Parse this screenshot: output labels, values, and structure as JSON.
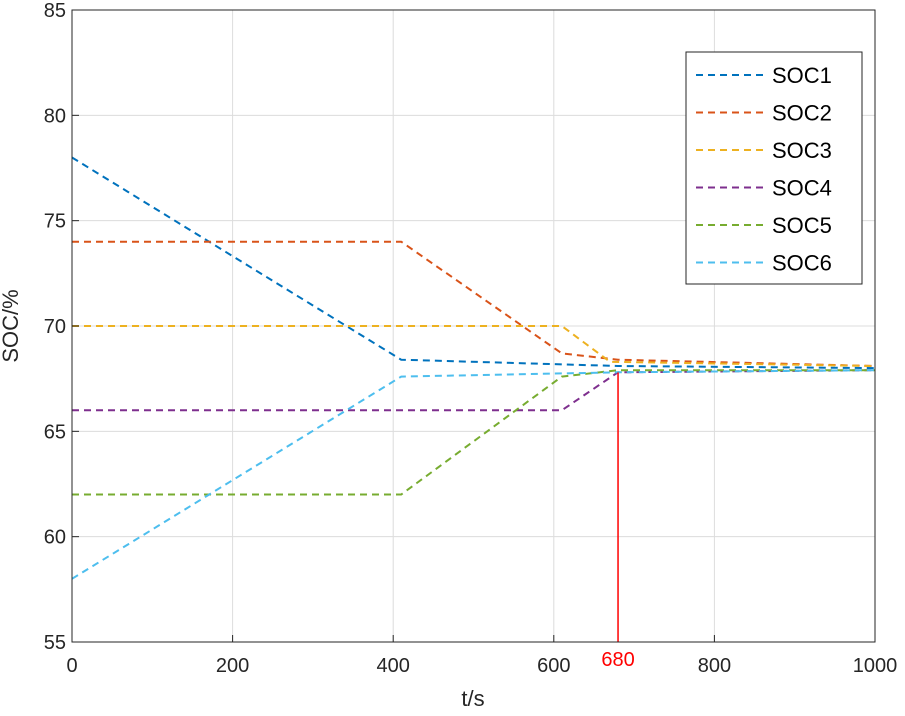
{
  "chart_data": {
    "type": "line",
    "title": "",
    "xlabel": "t/s",
    "ylabel": "SOC/%",
    "xlim": [
      0,
      1000
    ],
    "ylim": [
      55,
      85
    ],
    "xticks": [
      0,
      200,
      400,
      600,
      800,
      1000
    ],
    "yticks": [
      55,
      60,
      65,
      70,
      75,
      80,
      85
    ],
    "grid": true,
    "legend_position": "top-right",
    "line_style": "dashed",
    "series": [
      {
        "name": "SOC1",
        "color": "#0072BD",
        "x": [
          0,
          410,
          680,
          1000
        ],
        "y": [
          78,
          68.4,
          68.1,
          68.0
        ]
      },
      {
        "name": "SOC2",
        "color": "#D95319",
        "x": [
          0,
          410,
          610,
          680,
          1000
        ],
        "y": [
          74,
          74,
          68.7,
          68.4,
          68.1
        ]
      },
      {
        "name": "SOC3",
        "color": "#EDB120",
        "x": [
          0,
          610,
          670,
          1000
        ],
        "y": [
          70,
          70,
          68.3,
          68.1
        ]
      },
      {
        "name": "SOC4",
        "color": "#7E2F8E",
        "x": [
          0,
          610,
          680,
          1000
        ],
        "y": [
          66,
          66,
          67.8,
          67.9
        ]
      },
      {
        "name": "SOC5",
        "color": "#77AC30",
        "x": [
          0,
          410,
          610,
          680,
          1000
        ],
        "y": [
          62,
          62,
          67.6,
          67.9,
          67.9
        ]
      },
      {
        "name": "SOC6",
        "color": "#4DBEEE",
        "x": [
          0,
          410,
          680,
          1000
        ],
        "y": [
          58,
          67.6,
          67.8,
          67.9
        ]
      }
    ],
    "annotations": [
      {
        "type": "vline",
        "x": 680,
        "label": "680",
        "color": "#FF0000"
      }
    ]
  }
}
